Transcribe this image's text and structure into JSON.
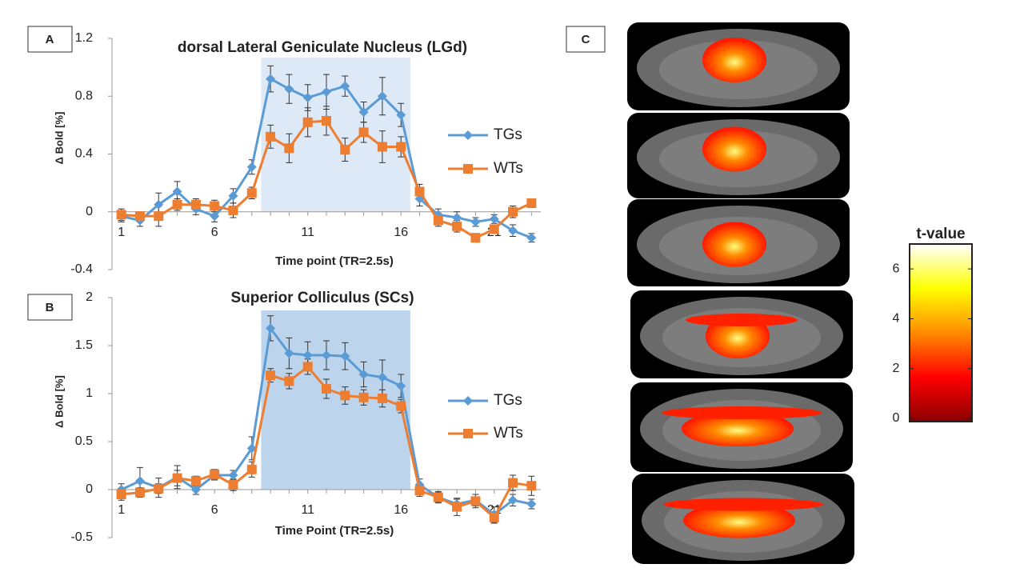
{
  "panels": [
    "A",
    "B",
    "C"
  ],
  "chart_data": [
    {
      "type": "line",
      "title": "dorsal Lateral Geniculate Nucleus (LGd)",
      "x_label": "Time point (TR=2.5s)",
      "y_label": "Δ Bold [%]",
      "x": [
        1,
        2,
        3,
        4,
        5,
        6,
        7,
        8,
        9,
        10,
        11,
        12,
        13,
        14,
        15,
        16,
        17,
        18,
        19,
        20,
        21,
        22,
        23
      ],
      "xlim": [
        0.5,
        23.5
      ],
      "xticks": [
        1,
        6,
        11,
        16,
        21
      ],
      "ylim": [
        -0.4,
        1.2
      ],
      "yticks": [
        -0.4,
        0,
        0.4,
        0.8,
        1.2
      ],
      "highlight": {
        "x": [
          8.5,
          16.5
        ],
        "color": "#dde9f6"
      },
      "series": [
        {
          "name": "TGs",
          "color": "#5b9bd5",
          "marker": "diamond",
          "values": [
            -0.03,
            -0.06,
            0.05,
            0.14,
            0.02,
            -0.03,
            0.11,
            0.31,
            0.92,
            0.85,
            0.79,
            0.83,
            0.87,
            0.69,
            0.8,
            0.67,
            0.09,
            -0.02,
            -0.04,
            -0.07,
            -0.05,
            -0.13,
            -0.18
          ],
          "errors": [
            0.04,
            0.04,
            0.08,
            0.07,
            0.04,
            0.04,
            0.05,
            0.05,
            0.09,
            0.1,
            0.09,
            0.12,
            0.07,
            0.07,
            0.13,
            0.08,
            0.05,
            0.04,
            0.04,
            0.03,
            0.03,
            0.04,
            0.03
          ]
        },
        {
          "name": "WTs",
          "color": "#ed7d31",
          "marker": "square",
          "values": [
            -0.02,
            -0.03,
            -0.03,
            0.05,
            0.05,
            0.04,
            0.01,
            0.13,
            0.52,
            0.44,
            0.62,
            0.63,
            0.43,
            0.55,
            0.45,
            0.45,
            0.14,
            -0.06,
            -0.1,
            -0.18,
            -0.12,
            0,
            0.06
          ],
          "errors": [
            0.04,
            0.03,
            0.07,
            0.04,
            0.04,
            0.04,
            0.05,
            0.04,
            0.08,
            0.1,
            0.1,
            0.1,
            0.08,
            0.07,
            0.11,
            0.07,
            0.05,
            0.04,
            0.04,
            0.03,
            0.03,
            0.04,
            0.03
          ]
        }
      ]
    },
    {
      "type": "line",
      "title": "Superior Colliculus (SCs)",
      "x_label": "Time Point (TR=2.5s)",
      "y_label": "Δ Bold [%]",
      "x": [
        1,
        2,
        3,
        4,
        5,
        6,
        7,
        8,
        9,
        10,
        11,
        12,
        13,
        14,
        15,
        16,
        17,
        18,
        19,
        20,
        21,
        22,
        23
      ],
      "xlim": [
        0.5,
        23.5
      ],
      "xticks": [
        1,
        6,
        11,
        16,
        21
      ],
      "ylim": [
        -0.5,
        2
      ],
      "yticks": [
        -0.5,
        0,
        0.5,
        1,
        1.5,
        2
      ],
      "highlight": {
        "x": [
          8.5,
          16.5
        ],
        "color": "#bdd5ec"
      },
      "series": [
        {
          "name": "TGs",
          "color": "#5b9bd5",
          "marker": "diamond",
          "values": [
            0,
            0.09,
            0.02,
            0.13,
            0,
            0.15,
            0.15,
            0.43,
            1.68,
            1.42,
            1.4,
            1.4,
            1.39,
            1.2,
            1.17,
            1.08,
            0.05,
            -0.08,
            -0.15,
            -0.11,
            -0.26,
            -0.11,
            -0.15
          ],
          "errors": [
            0.06,
            0.14,
            0.1,
            0.12,
            0.05,
            0.05,
            0.05,
            0.12,
            0.13,
            0.16,
            0.14,
            0.15,
            0.14,
            0.13,
            0.18,
            0.12,
            0.06,
            0.05,
            0.05,
            0.06,
            0.08,
            0.06,
            0.05
          ]
        },
        {
          "name": "WTs",
          "color": "#ed7d31",
          "marker": "square",
          "values": [
            -0.05,
            -0.03,
            0.01,
            0.12,
            0.09,
            0.16,
            0.05,
            0.21,
            1.19,
            1.13,
            1.28,
            1.05,
            0.98,
            0.96,
            0.95,
            0.87,
            -0.01,
            -0.08,
            -0.18,
            -0.12,
            -0.29,
            0.07,
            0.04
          ],
          "errors": [
            0.06,
            0.05,
            0.05,
            0.08,
            0.05,
            0.05,
            0.06,
            0.08,
            0.07,
            0.08,
            0.08,
            0.1,
            0.09,
            0.08,
            0.09,
            0.07,
            0.06,
            0.06,
            0.09,
            0.07,
            0.06,
            0.08,
            0.1
          ]
        }
      ]
    },
    {
      "type": "colorbar",
      "title": "t-value",
      "clim": [
        0,
        7
      ],
      "ticks": [
        0,
        2,
        4,
        6
      ],
      "colors": [
        "#8b0000",
        "#ff0000",
        "#ff8c00",
        "#ffff00",
        "#ffffff"
      ]
    }
  ]
}
